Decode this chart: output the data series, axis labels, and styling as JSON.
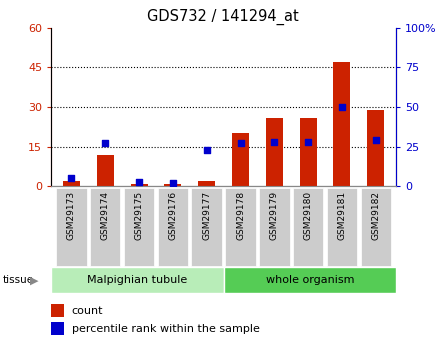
{
  "title": "GDS732 / 141294_at",
  "samples": [
    "GSM29173",
    "GSM29174",
    "GSM29175",
    "GSM29176",
    "GSM29177",
    "GSM29178",
    "GSM29179",
    "GSM29180",
    "GSM29181",
    "GSM29182"
  ],
  "counts": [
    2,
    12,
    1,
    1,
    2,
    20,
    26,
    26,
    47,
    29
  ],
  "percentiles": [
    5,
    27,
    3,
    2,
    23,
    27,
    28,
    28,
    50,
    29
  ],
  "tissue_groups": [
    {
      "label": "Malpighian tubule",
      "start": 0,
      "end": 5,
      "color": "#b8edb8"
    },
    {
      "label": "whole organism",
      "start": 5,
      "end": 10,
      "color": "#55cc55"
    }
  ],
  "ylim_left": [
    0,
    60
  ],
  "ylim_right": [
    0,
    100
  ],
  "yticks_left": [
    0,
    15,
    30,
    45,
    60
  ],
  "yticks_right": [
    0,
    25,
    50,
    75,
    100
  ],
  "ytick_labels_left": [
    "0",
    "15",
    "30",
    "45",
    "60"
  ],
  "ytick_labels_right": [
    "0",
    "25",
    "50",
    "75",
    "100%"
  ],
  "bar_color": "#cc2200",
  "dot_color": "#0000cc",
  "grid_color": "#000000",
  "tick_bg": "#cccccc",
  "outer_border_color": "#888888"
}
